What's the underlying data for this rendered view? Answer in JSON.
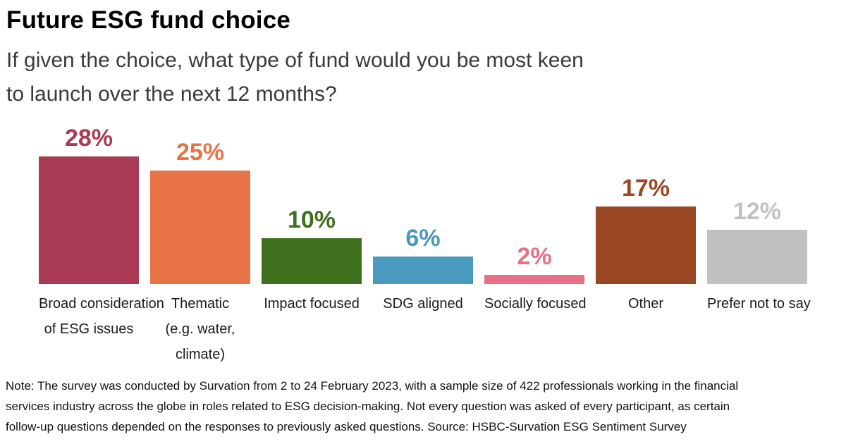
{
  "header": {
    "title": "Future ESG fund choice",
    "subtitle_lines": [
      "If given the choice, what type of fund would you be most keen",
      "to launch over the next 12 months?"
    ]
  },
  "chart_data": {
    "type": "bar",
    "title": "Future ESG fund choice",
    "subtitle": "If given the choice, what type of fund would you be most keen to launch over the next 12 months?",
    "categories": [
      "Broad consideration of ESG issues",
      "Thematic (e.g. water, climate)",
      "Impact focused",
      "SDG aligned",
      "Socially focused",
      "Other",
      "Prefer not to say"
    ],
    "category_label_lines": [
      [
        "Broad consideration",
        "of ESG issues"
      ],
      [
        "Thematic",
        "(e.g. water,",
        "climate)"
      ],
      [
        "Impact focused"
      ],
      [
        "SDG aligned"
      ],
      [
        "Socially focused"
      ],
      [
        "Other"
      ],
      [
        "Prefer not to say"
      ]
    ],
    "values": [
      28,
      25,
      10,
      6,
      2,
      17,
      12
    ],
    "value_labels": [
      "28%",
      "25%",
      "10%",
      "6%",
      "2%",
      "17%",
      "12%"
    ],
    "colors": [
      "#a93a53",
      "#e87347",
      "#3f701e",
      "#4a99be",
      "#e67086",
      "#9a4724",
      "#c1c1c1"
    ],
    "unit": "%",
    "xlabel": "",
    "ylabel": "",
    "ylim": [
      0,
      30
    ],
    "grid": false,
    "legend": "none"
  },
  "footnote": {
    "lines": [
      "Note: The survey was conducted by Survation from 2 to 24 February 2023, with a sample size of 422 professionals working in the financial",
      "services industry across the globe in roles related to ESG decision-making. Not every question was asked of every participant, as certain",
      "follow-up questions depended on the responses to previously asked questions. Source: HSBC-Survation ESG Sentiment Survey"
    ]
  }
}
